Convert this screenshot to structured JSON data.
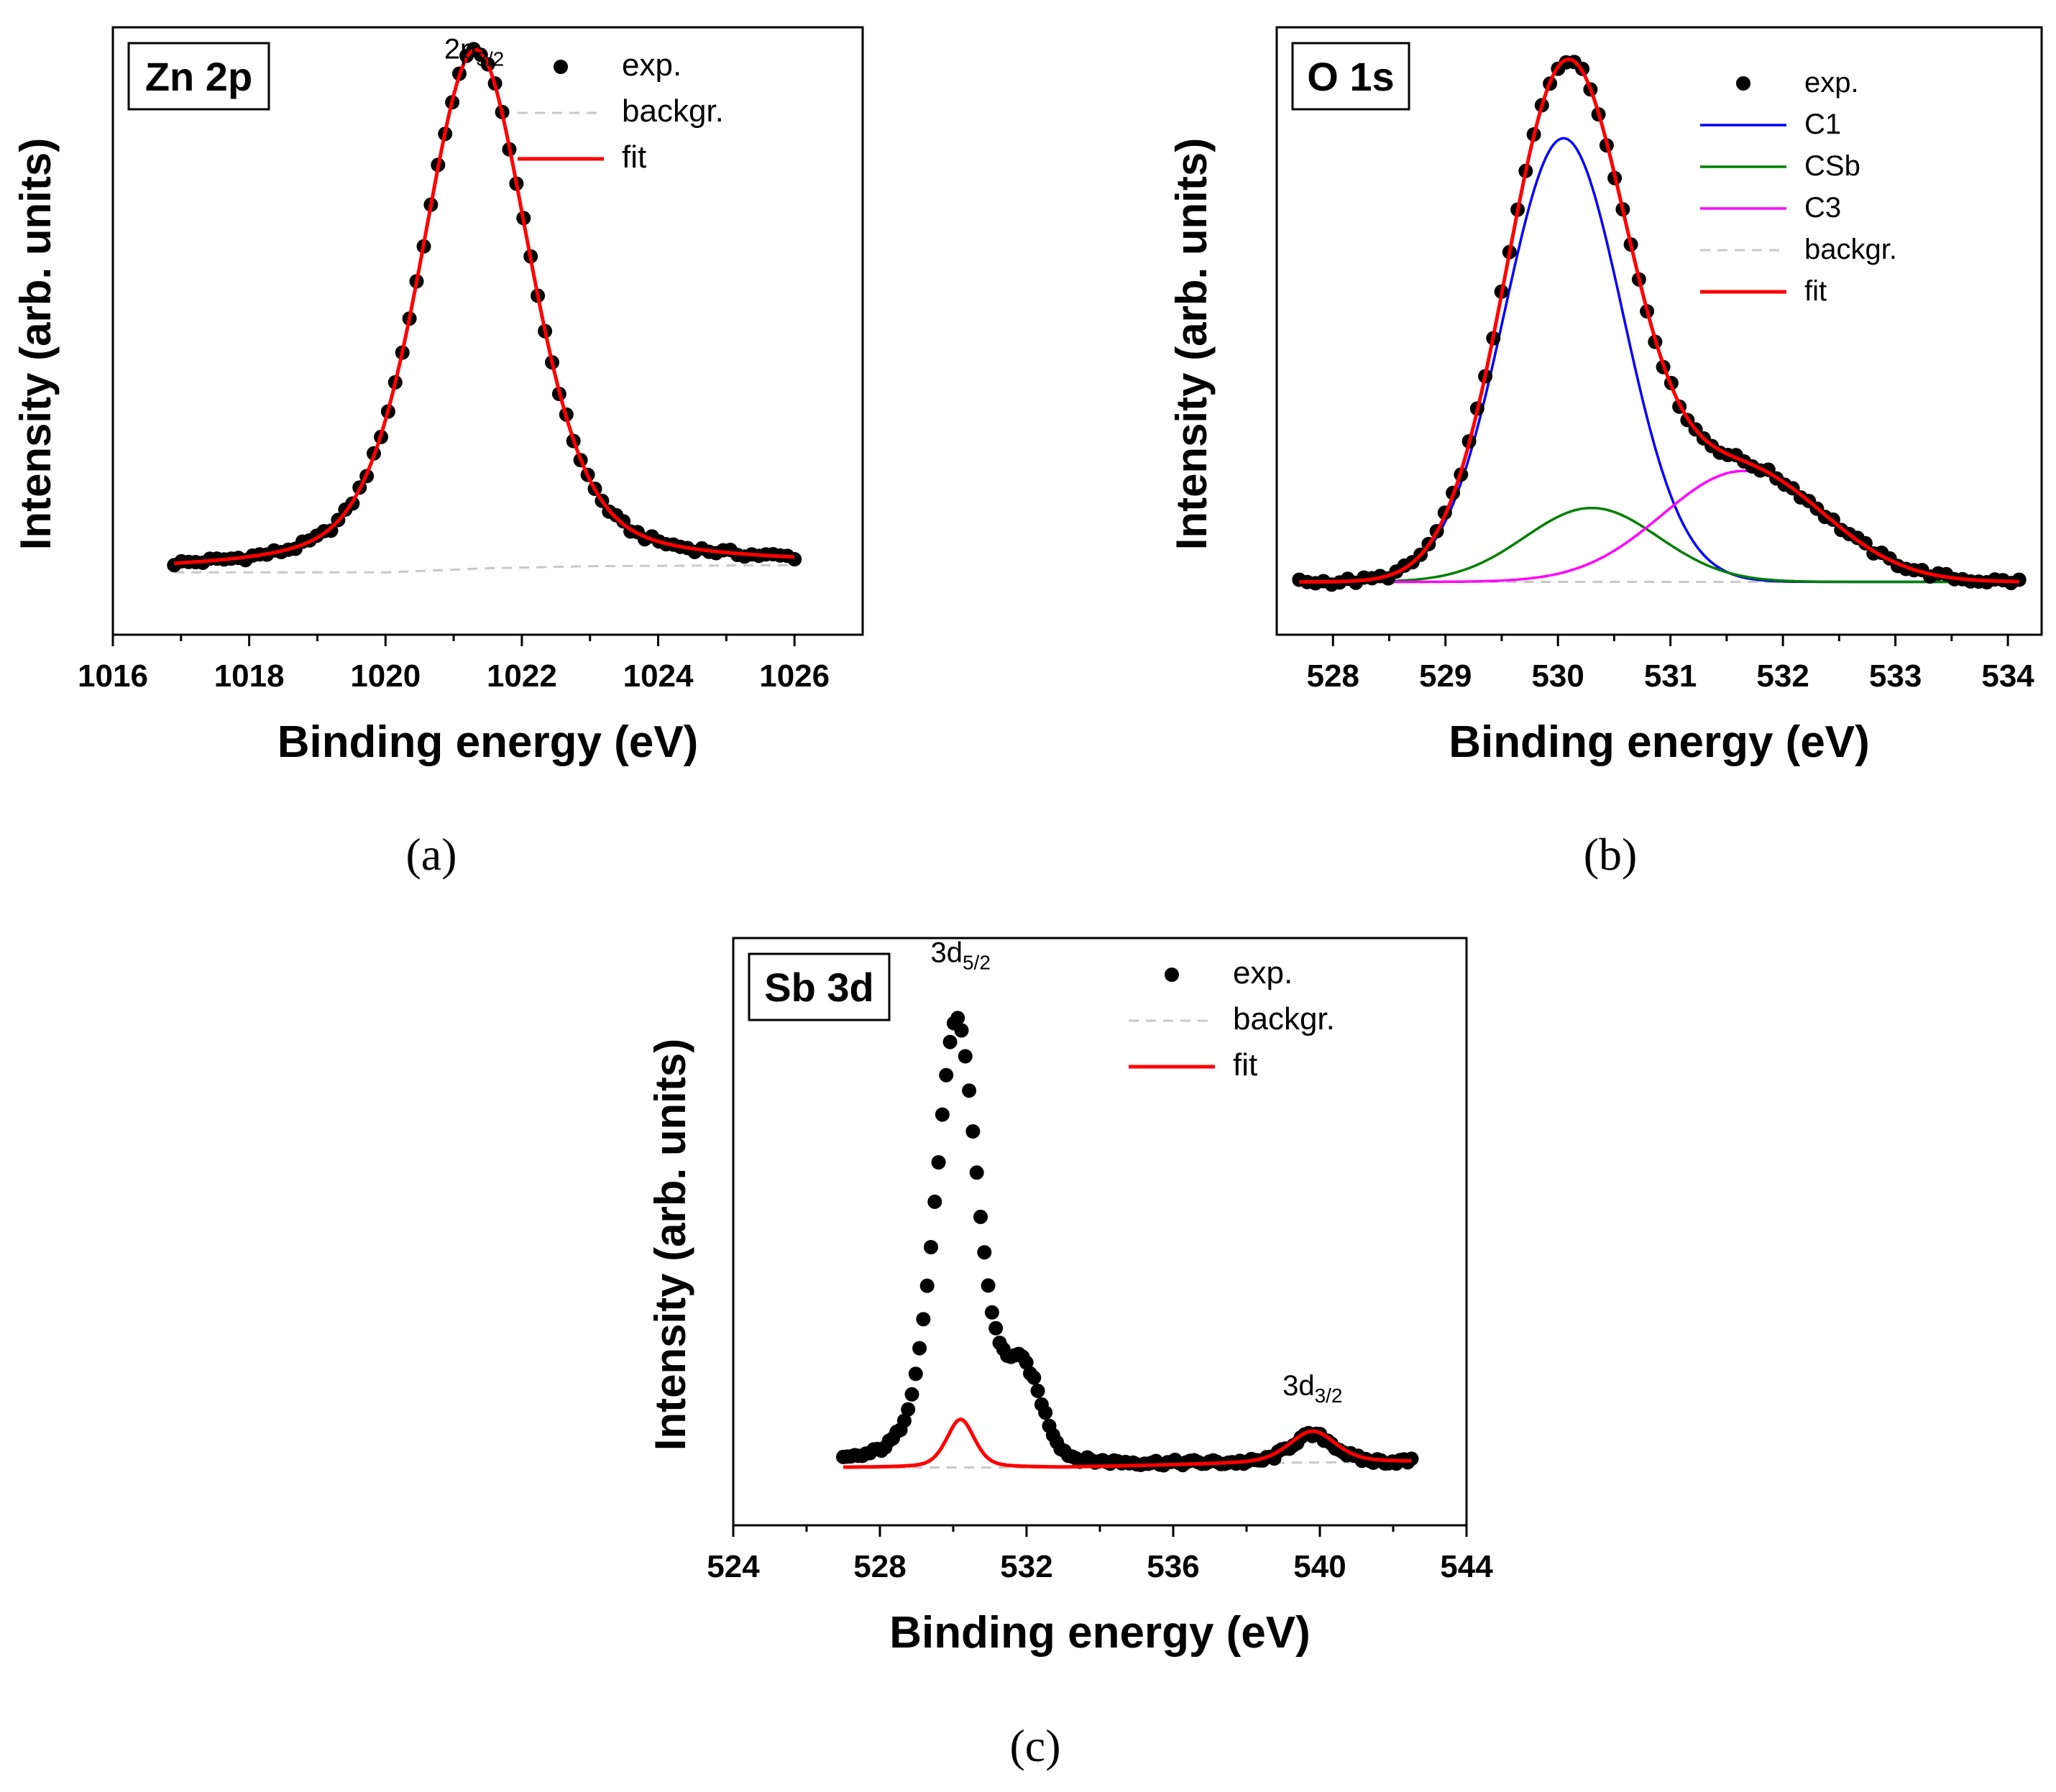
{
  "chart_data": [
    {
      "id": "a",
      "type": "scatter",
      "panel_label": "Zn 2p",
      "caption": "(a)",
      "xlabel": "Binding energy (eV)",
      "ylabel": "Intensity (arb. units)",
      "xlim": [
        1016,
        1027
      ],
      "ylim": [
        -0.12,
        1.05
      ],
      "xticks": [
        1016,
        1018,
        1020,
        1022,
        1024,
        1026
      ],
      "tick_labels": [
        "1016",
        "1018",
        "1020",
        "1022",
        "1024",
        "1026"
      ],
      "data_range": [
        1016.9,
        1026.0
      ],
      "points": 88,
      "annotations": [
        {
          "base": "2p",
          "sub": "3/2",
          "x": 1021.3,
          "y": 0.99
        }
      ],
      "legend": {
        "placement": "top-right",
        "entries": [
          {
            "label": "exp.",
            "style": "dots"
          },
          {
            "label": "backgr.",
            "style": "dashed"
          },
          {
            "label": "fit",
            "style": "line"
          }
        ]
      },
      "background": {
        "x": [
          1016.9,
          1020.0,
          1021.5,
          1023.0,
          1026.0
        ],
        "y": [
          0.0,
          0.0,
          0.008,
          0.012,
          0.014
        ]
      },
      "components": [
        {
          "name": "Zn 2p3/2",
          "center": 1021.32,
          "amplitude": 1.0,
          "width": 0.95,
          "shape": "voigt"
        }
      ],
      "fit_color": "#ff0000",
      "dot_color": "#000000",
      "background_color": "#c8c8c8"
    },
    {
      "id": "b",
      "type": "scatter",
      "panel_label": "O 1s",
      "caption": "(b)",
      "xlabel": "Binding energy (eV)",
      "ylabel": "Intensity (arb. units)",
      "xlim": [
        527.5,
        534.3
      ],
      "ylim": [
        -0.1,
        1.05
      ],
      "xticks": [
        528,
        529,
        530,
        531,
        532,
        533,
        534
      ],
      "tick_labels": [
        "528",
        "529",
        "530",
        "531",
        "532",
        "533",
        "534"
      ],
      "data_range": [
        527.7,
        534.1
      ],
      "points": 90,
      "annotations": [],
      "legend": {
        "placement": "top-right",
        "entries": [
          {
            "label": "exp.",
            "style": "dots"
          },
          {
            "label": "C1",
            "style": "line",
            "color": "#0000ff"
          },
          {
            "label": "CSb",
            "style": "line",
            "color": "#008000"
          },
          {
            "label": "C3",
            "style": "line",
            "color": "#ff00ff"
          },
          {
            "label": "backgr.",
            "style": "dashed"
          },
          {
            "label": "fit",
            "style": "line"
          }
        ]
      },
      "background": {
        "x": [
          527.7,
          534.1
        ],
        "y": [
          0.0,
          0.0
        ]
      },
      "components": [
        {
          "name": "C1",
          "center": 530.05,
          "amplitude": 0.84,
          "width": 0.62,
          "shape": "gauss",
          "color": "#0000ff"
        },
        {
          "name": "CSb",
          "center": 530.3,
          "amplitude": 0.14,
          "width": 0.7,
          "shape": "gauss",
          "color": "#008000"
        },
        {
          "name": "C3",
          "center": 531.65,
          "amplitude": 0.21,
          "width": 0.85,
          "shape": "gauss",
          "color": "#ff00ff"
        }
      ],
      "fit_color": "#ff0000",
      "dot_color": "#000000",
      "background_color": "#c8c8c8"
    },
    {
      "id": "c",
      "type": "scatter",
      "panel_label": "Sb 3d",
      "caption": "(c)",
      "xlabel": "Binding energy (eV)",
      "ylabel": "Intensity (arb. units)",
      "xlim": [
        524,
        544
      ],
      "ylim": [
        -0.12,
        1.1
      ],
      "xticks": [
        524,
        528,
        532,
        536,
        540,
        544
      ],
      "tick_labels": [
        "524",
        "528",
        "532",
        "536",
        "540",
        "544"
      ],
      "data_range": [
        527.0,
        542.5
      ],
      "points": 150,
      "annotations": [
        {
          "base": "3d",
          "sub": "5/2",
          "x": 530.2,
          "y": 1.05
        },
        {
          "base": "3d",
          "sub": "3/2",
          "x": 539.8,
          "y": 0.15
        }
      ],
      "legend": {
        "placement": "top-right",
        "entries": [
          {
            "label": "exp.",
            "style": "dots"
          },
          {
            "label": "backgr.",
            "style": "dashed"
          },
          {
            "label": "fit",
            "style": "line"
          }
        ]
      },
      "background": {
        "x": [
          527.0,
          533.0,
          536.0,
          539.0,
          542.5
        ],
        "y": [
          0.0,
          0.0,
          0.005,
          0.01,
          0.012
        ]
      },
      "components": [
        {
          "name": "fit 3d5/2",
          "center": 530.2,
          "amplitude": 0.1,
          "width": 0.45,
          "shape": "voigt"
        },
        {
          "name": "fit 3d3/2",
          "center": 539.8,
          "amplitude": 0.065,
          "width": 0.75,
          "shape": "voigt"
        }
      ],
      "experimental_components": [
        {
          "center": 530.1,
          "amplitude": 0.93,
          "width": 0.7,
          "shape": "voigt"
        },
        {
          "center": 531.9,
          "amplitude": 0.17,
          "width": 0.6,
          "shape": "gauss"
        },
        {
          "center": 539.8,
          "amplitude": 0.055,
          "width": 0.7,
          "shape": "gauss"
        }
      ],
      "fit_color": "#ff0000",
      "dot_color": "#000000",
      "background_color": "#c8c8c8"
    }
  ]
}
